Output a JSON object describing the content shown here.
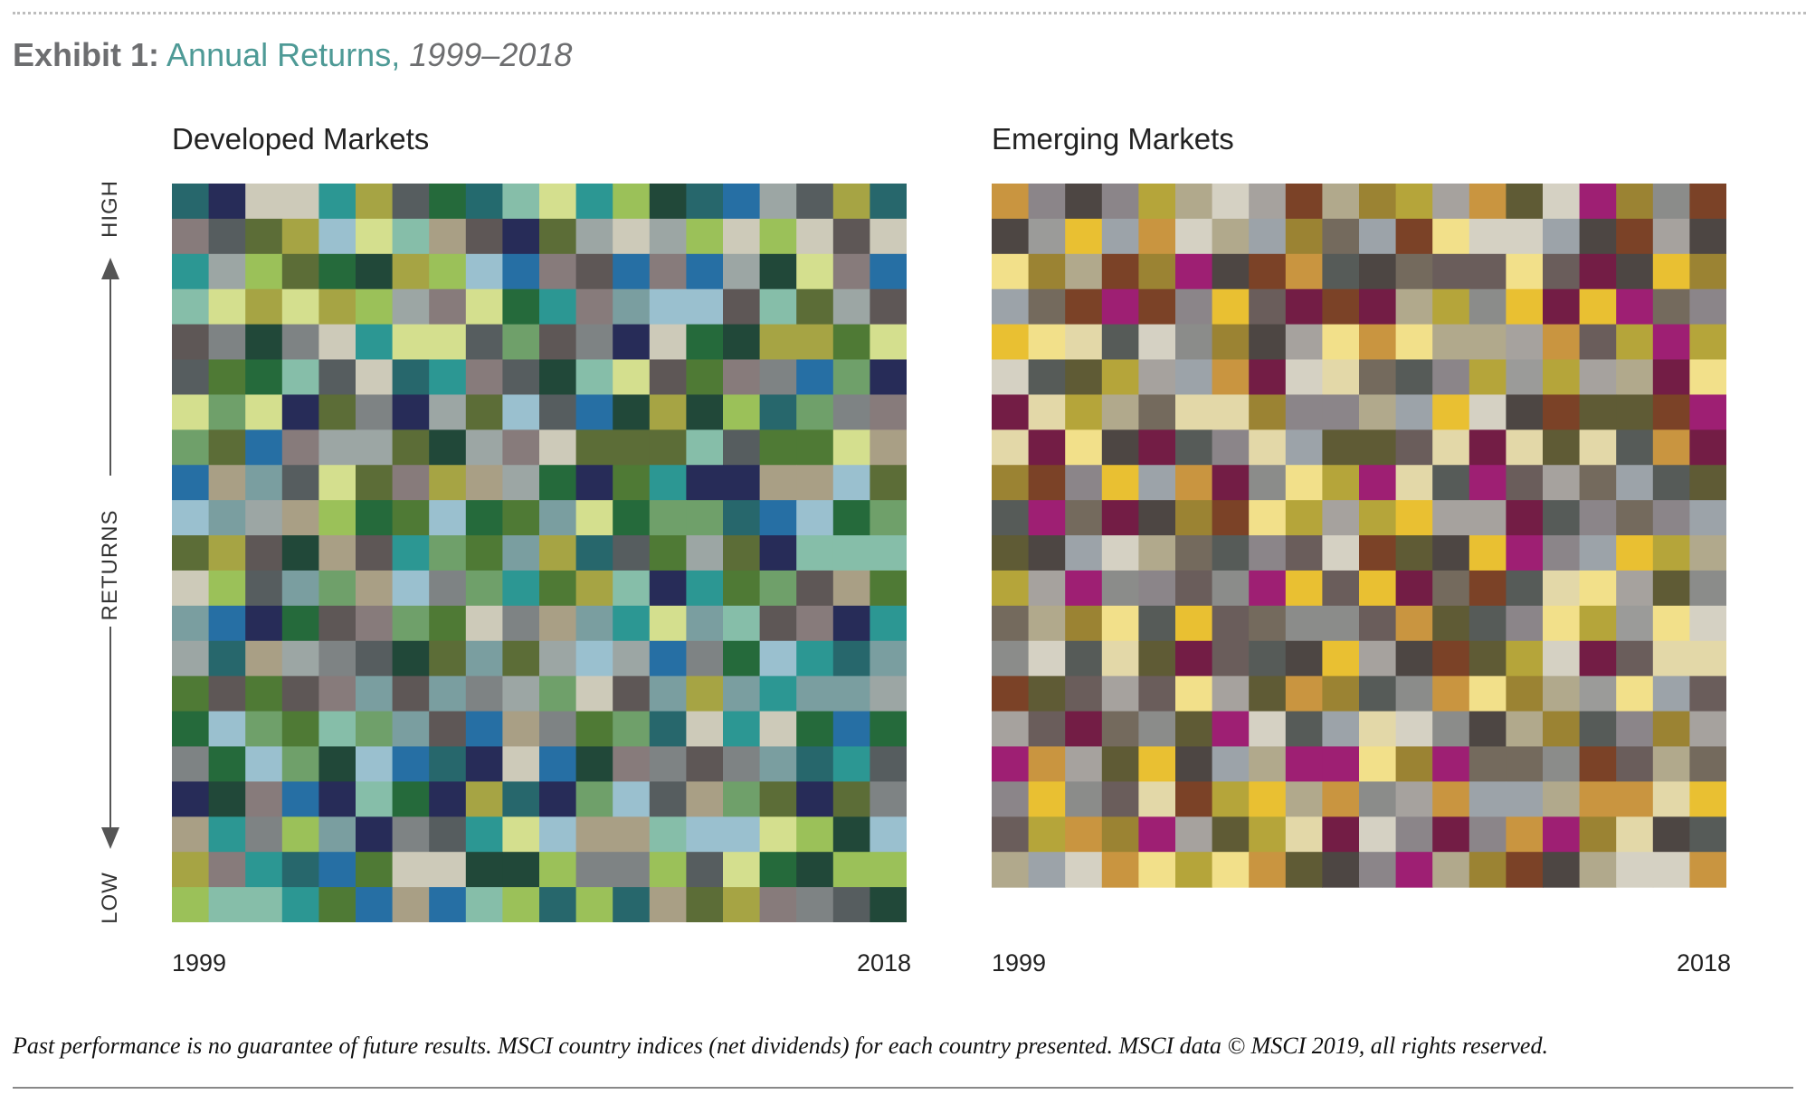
{
  "exhibit": {
    "lead": "Exhibit 1:",
    "name": "Annual Returns,",
    "years": "1999–2018"
  },
  "y_axis": {
    "high": "HIGH",
    "middle": "RETURNS",
    "low": "LOW"
  },
  "footnote": "Past performance is no guarantee of future results. MSCI country indices (net dividends) for each country presented. MSCI data © MSCI 2019, all rights reserved.",
  "chart_data": [
    {
      "type": "heatmap",
      "title": "Developed Markets",
      "x_start": "1999",
      "x_end": "2018",
      "ylabel_high": "HIGH",
      "ylabel_low": "LOW",
      "n_years": 20,
      "n_ranks": 21,
      "colors": [
        "#27676c",
        "#272c58",
        "#cdcab9",
        "#cdcab9",
        "#2c9793",
        "#a6a444",
        "#565d5f",
        "#256a3b",
        "#246a6e",
        "#86bea9",
        "#d4df8e",
        "#2c9793",
        "#9bc159",
        "#214839",
        "#27676c",
        "#266fa4",
        "#9ca6a4",
        "#565d5f",
        "#a6a444",
        "#27676c",
        "#877b7b",
        "#565d5f",
        "#5c6d37",
        "#a6a444",
        "#9ac0cf",
        "#d4df8e",
        "#86bea9",
        "#a99f85",
        "#5e5756",
        "#272c58",
        "#5c6d37",
        "#9ca6a4",
        "#cdcab9",
        "#9ca6a4",
        "#9bc159",
        "#cdcab9",
        "#9bc159",
        "#cdcab9",
        "#5e5756",
        "#cdcab9",
        "#2c9793",
        "#9ca6a4",
        "#9bc159",
        "#5c6d37",
        "#256a3b",
        "#214839",
        "#a6a444",
        "#9bc159",
        "#9ac0cf",
        "#266fa4",
        "#877b7b",
        "#5e5756",
        "#266fa4",
        "#877b7b",
        "#266fa4",
        "#9ca6a4",
        "#214839",
        "#d4df8e",
        "#877b7b",
        "#266fa4",
        "#86bea9",
        "#d4df8e",
        "#a6a444",
        "#d4df8e",
        "#a6a444",
        "#9bc159",
        "#9ca6a4",
        "#877b7b",
        "#d4df8e",
        "#256a3b",
        "#2c9793",
        "#877b7b",
        "#7a9ea0",
        "#9ac0cf",
        "#9ac0cf",
        "#5e5756",
        "#86bea9",
        "#5c6d37",
        "#9ca6a4",
        "#5e5756",
        "#5e5756",
        "#7e8384",
        "#214839",
        "#7e8384",
        "#cdcab9",
        "#2c9793",
        "#d4df8e",
        "#d4df8e",
        "#565d5f",
        "#6fa06a",
        "#5e5756",
        "#7e8384",
        "#272c58",
        "#cdcab9",
        "#256a3b",
        "#214839",
        "#a6a444",
        "#a6a444",
        "#4f7a35",
        "#d4df8e",
        "#565d5f",
        "#4f7a35",
        "#256a3b",
        "#86bea9",
        "#565d5f",
        "#cdcab9",
        "#27676c",
        "#2c9793",
        "#877b7b",
        "#565d5f",
        "#214839",
        "#86bea9",
        "#d4df8e",
        "#5e5756",
        "#4f7a35",
        "#877b7b",
        "#7e8384",
        "#266fa4",
        "#6fa06a",
        "#272c58",
        "#d4df8e",
        "#6fa06a",
        "#d4df8e",
        "#272c58",
        "#5c6d37",
        "#7e8384",
        "#272c58",
        "#9ca6a4",
        "#5c6d37",
        "#9ac0cf",
        "#565d5f",
        "#266fa4",
        "#214839",
        "#a6a444",
        "#214839",
        "#9bc159",
        "#27676c",
        "#6fa06a",
        "#7e8384",
        "#877b7b",
        "#6fa06a",
        "#5c6d37",
        "#266fa4",
        "#877b7b",
        "#9ca6a4",
        "#9ca6a4",
        "#5c6d37",
        "#214839",
        "#9ca6a4",
        "#877b7b",
        "#cdcab9",
        "#5c6d37",
        "#5c6d37",
        "#5c6d37",
        "#86bea9",
        "#565d5f",
        "#4f7a35",
        "#4f7a35",
        "#d4df8e",
        "#a99f85",
        "#266fa4",
        "#a99f85",
        "#7a9ea0",
        "#565d5f",
        "#d4df8e",
        "#5c6d37",
        "#877b7b",
        "#a6a444",
        "#a99f85",
        "#9ca6a4",
        "#256a3b",
        "#272c58",
        "#4f7a35",
        "#2c9793",
        "#272c58",
        "#272c58",
        "#a99f85",
        "#a99f85",
        "#9ac0cf",
        "#5c6d37",
        "#9ac0cf",
        "#7a9ea0",
        "#9ca6a4",
        "#a99f85",
        "#9bc159",
        "#256a3b",
        "#4f7a35",
        "#9ac0cf",
        "#256a3b",
        "#4f7a35",
        "#7a9ea0",
        "#d4df8e",
        "#256a3b",
        "#6fa06a",
        "#6fa06a",
        "#27676c",
        "#266fa4",
        "#9ac0cf",
        "#256a3b",
        "#6fa06a",
        "#5c6d37",
        "#a6a444",
        "#5e5756",
        "#214839",
        "#a99f85",
        "#5e5756",
        "#2c9793",
        "#6fa06a",
        "#4f7a35",
        "#7a9ea0",
        "#a6a444",
        "#27676c",
        "#565d5f",
        "#4f7a35",
        "#9ca6a4",
        "#5c6d37",
        "#272c58",
        "#86bea9",
        "#86bea9",
        "#86bea9",
        "#cdcab9",
        "#9bc159",
        "#565d5f",
        "#7a9ea0",
        "#6fa06a",
        "#a99f85",
        "#9ac0cf",
        "#7e8384",
        "#6fa06a",
        "#2c9793",
        "#4f7a35",
        "#a6a444",
        "#86bea9",
        "#272c58",
        "#2c9793",
        "#4f7a35",
        "#6fa06a",
        "#5e5756",
        "#a99f85",
        "#4f7a35",
        "#7a9ea0",
        "#266fa4",
        "#272c58",
        "#256a3b",
        "#5e5756",
        "#877b7b",
        "#6fa06a",
        "#4f7a35",
        "#cdcab9",
        "#7e8384",
        "#a99f85",
        "#7a9ea0",
        "#2c9793",
        "#d4df8e",
        "#7a9ea0",
        "#86bea9",
        "#5e5756",
        "#877b7b",
        "#272c58",
        "#2c9793",
        "#9ca6a4",
        "#27676c",
        "#a99f85",
        "#9ca6a4",
        "#7e8384",
        "#565d5f",
        "#214839",
        "#5c6d37",
        "#7a9ea0",
        "#5c6d37",
        "#9ca6a4",
        "#9ac0cf",
        "#9ca6a4",
        "#266fa4",
        "#7e8384",
        "#256a3b",
        "#9ac0cf",
        "#2c9793",
        "#27676c",
        "#7a9ea0",
        "#4f7a35",
        "#5e5756",
        "#4f7a35",
        "#5e5756",
        "#877b7b",
        "#7a9ea0",
        "#5e5756",
        "#7a9ea0",
        "#7e8384",
        "#9ca6a4",
        "#6fa06a",
        "#cdcab9",
        "#5e5756",
        "#7a9ea0",
        "#a6a444",
        "#7a9ea0",
        "#2c9793",
        "#7a9ea0",
        "#7a9ea0",
        "#9ca6a4",
        "#256a3b",
        "#9ac0cf",
        "#6fa06a",
        "#4f7a35",
        "#86bea9",
        "#6fa06a",
        "#7a9ea0",
        "#5e5756",
        "#266fa4",
        "#a99f85",
        "#7e8384",
        "#4f7a35",
        "#6fa06a",
        "#27676c",
        "#cdcab9",
        "#2c9793",
        "#cdcab9",
        "#256a3b",
        "#266fa4",
        "#256a3b",
        "#7e8384",
        "#256a3b",
        "#9ac0cf",
        "#6fa06a",
        "#214839",
        "#9ac0cf",
        "#266fa4",
        "#27676c",
        "#272c58",
        "#cdcab9",
        "#266fa4",
        "#214839",
        "#877b7b",
        "#7e8384",
        "#5e5756",
        "#7e8384",
        "#7a9ea0",
        "#27676c",
        "#2c9793",
        "#565d5f",
        "#272c58",
        "#214839",
        "#877b7b",
        "#266fa4",
        "#272c58",
        "#86bea9",
        "#256a3b",
        "#272c58",
        "#a6a444",
        "#27676c",
        "#272c58",
        "#6fa06a",
        "#9ac0cf",
        "#565d5f",
        "#a99f85",
        "#6fa06a",
        "#5c6d37",
        "#272c58",
        "#5c6d37",
        "#7e8384",
        "#a99f85",
        "#2c9793",
        "#7e8384",
        "#9bc159",
        "#7a9ea0",
        "#272c58",
        "#7e8384",
        "#565d5f",
        "#2c9793",
        "#d4df8e",
        "#9ac0cf",
        "#a99f85",
        "#a99f85",
        "#86bea9",
        "#9ac0cf",
        "#9ac0cf",
        "#d4df8e",
        "#9bc159",
        "#214839",
        "#9ac0cf",
        "#a6a444",
        "#877b7b",
        "#2c9793",
        "#27676c",
        "#266fa4",
        "#4f7a35",
        "#cdcab9",
        "#cdcab9",
        "#214839",
        "#214839",
        "#9bc159",
        "#7e8384",
        "#7e8384",
        "#9bc159",
        "#565d5f",
        "#d4df8e",
        "#256a3b",
        "#214839",
        "#9bc159",
        "#9bc159",
        "#9bc159",
        "#86bea9",
        "#86bea9",
        "#2c9793",
        "#4f7a35",
        "#266fa4",
        "#a99f85",
        "#266fa4",
        "#86bea9",
        "#9bc159",
        "#27676c",
        "#9bc159",
        "#27676c",
        "#a99f85",
        "#5c6d37",
        "#a6a444",
        "#877b7b",
        "#7e8384",
        "#565d5f",
        "#214839",
        "#214839",
        "#cdcab9",
        "#27676c",
        "#9ac0cf",
        "#27676c",
        "#27676c",
        "#9bc159",
        "#86bea9",
        "#9bc159",
        "#9bc159",
        "#86bea9",
        "#256a3b",
        "#a6a444",
        "#256a3b",
        "#877b7b",
        "#a99f85",
        "#565d5f",
        "#9ca6a4",
        "#cdcab9",
        "#a6a444"
      ]
    },
    {
      "type": "heatmap",
      "title": "Emerging Markets",
      "x_start": "1999",
      "x_end": "2018",
      "n_years": 20,
      "n_ranks": 21,
      "colors": [
        "#c99540",
        "#8b8589",
        "#4d4643",
        "#8b8589",
        "#b5a53a",
        "#b1a98c",
        "#d5d1c3",
        "#a6a29e",
        "#7b4227",
        "#b1a98c",
        "#9b8333",
        "#b5a53a",
        "#a6a29e",
        "#c99540",
        "#5f5b35",
        "#d5d1c3",
        "#9e1f73",
        "#9b8333",
        "#8b8c8a",
        "#7b4227",
        "#4d4643",
        "#9b9b99",
        "#e9c032",
        "#9ca3a9",
        "#c99540",
        "#d5d1c3",
        "#b1a98c",
        "#9ca3a9",
        "#9b8333",
        "#746a5d",
        "#9ca3a9",
        "#7b4227",
        "#f2e08a",
        "#d5d1c3",
        "#d5d1c3",
        "#9ca3a9",
        "#4d4643",
        "#7b4227",
        "#a6a29e",
        "#4d4643",
        "#f2e08a",
        "#9b8333",
        "#b1a98c",
        "#7b4227",
        "#9b8333",
        "#9e1f73",
        "#4d4643",
        "#7b4227",
        "#c99540",
        "#565b58",
        "#4d4643",
        "#746a5d",
        "#6a5d5b",
        "#6a5d5b",
        "#f2e08a",
        "#6a5d5b",
        "#731d45",
        "#4d4643",
        "#e9c032",
        "#9b8333",
        "#9ca3a9",
        "#746a5d",
        "#7b4227",
        "#9e1f73",
        "#7b4227",
        "#8b8589",
        "#e9c032",
        "#6a5d5b",
        "#731d45",
        "#7b4227",
        "#731d45",
        "#b1a98c",
        "#b5a53a",
        "#8b8c8a",
        "#e9c032",
        "#731d45",
        "#e9c032",
        "#9e1f73",
        "#746a5d",
        "#8b8589",
        "#e9c032",
        "#f2e08a",
        "#e3d8a8",
        "#565b58",
        "#d5d1c3",
        "#8b8c8a",
        "#9b8333",
        "#4d4643",
        "#a6a29e",
        "#f2e08a",
        "#c99540",
        "#f2e08a",
        "#b1a98c",
        "#b1a98c",
        "#a6a29e",
        "#c99540",
        "#6a5d5b",
        "#b5a53a",
        "#9e1f73",
        "#b5a53a",
        "#d5d1c3",
        "#565b58",
        "#5f5b35",
        "#b5a53a",
        "#a6a29e",
        "#9ca3a9",
        "#c99540",
        "#731d45",
        "#d5d1c3",
        "#e3d8a8",
        "#746a5d",
        "#565b58",
        "#8b8589",
        "#b5a53a",
        "#9b9b99",
        "#b5a53a",
        "#a6a29e",
        "#b1a98c",
        "#731d45",
        "#f2e08a",
        "#731d45",
        "#e3d8a8",
        "#b5a53a",
        "#b1a98c",
        "#746a5d",
        "#e3d8a8",
        "#e3d8a8",
        "#9b8333",
        "#8b8589",
        "#8b8589",
        "#b1a98c",
        "#9ca3a9",
        "#e9c032",
        "#d5d1c3",
        "#4d4643",
        "#7b4227",
        "#5f5b35",
        "#5f5b35",
        "#7b4227",
        "#9e1f73",
        "#e3d8a8",
        "#731d45",
        "#f2e08a",
        "#4d4643",
        "#731d45",
        "#565b58",
        "#8b8589",
        "#e3d8a8",
        "#9ca3a9",
        "#5f5b35",
        "#5f5b35",
        "#6a5d5b",
        "#e3d8a8",
        "#731d45",
        "#e3d8a8",
        "#5f5b35",
        "#e3d8a8",
        "#565b58",
        "#c99540",
        "#731d45",
        "#9b8333",
        "#7b4227",
        "#8b8589",
        "#e9c032",
        "#9ca3a9",
        "#c99540",
        "#731d45",
        "#8b8c8a",
        "#f2e08a",
        "#b5a53a",
        "#9e1f73",
        "#e3d8a8",
        "#565b58",
        "#9e1f73",
        "#6a5d5b",
        "#a6a29e",
        "#746a5d",
        "#9ca3a9",
        "#565b58",
        "#5f5b35",
        "#565b58",
        "#9e1f73",
        "#746a5d",
        "#731d45",
        "#4d4643",
        "#9b8333",
        "#7b4227",
        "#f2e08a",
        "#b5a53a",
        "#a6a29e",
        "#b5a53a",
        "#e9c032",
        "#a6a29e",
        "#a6a29e",
        "#731d45",
        "#565b58",
        "#8b8589",
        "#746a5d",
        "#8b8589",
        "#9ca3a9",
        "#5f5b35",
        "#4d4643",
        "#9ca3a9",
        "#d5d1c3",
        "#b1a98c",
        "#746a5d",
        "#565b58",
        "#8b8589",
        "#6a5d5b",
        "#d5d1c3",
        "#7b4227",
        "#5f5b35",
        "#4d4643",
        "#e9c032",
        "#9e1f73",
        "#8b8589",
        "#9ca3a9",
        "#e9c032",
        "#b5a53a",
        "#b1a98c",
        "#b5a53a",
        "#a6a29e",
        "#9e1f73",
        "#8b8c8a",
        "#8b8589",
        "#6a5d5b",
        "#8b8c8a",
        "#9e1f73",
        "#e9c032",
        "#6a5d5b",
        "#e9c032",
        "#731d45",
        "#746a5d",
        "#7b4227",
        "#565b58",
        "#e3d8a8",
        "#f2e08a",
        "#a6a29e",
        "#5f5b35",
        "#8b8c8a",
        "#746a5d",
        "#b1a98c",
        "#9b8333",
        "#f2e08a",
        "#565b58",
        "#e9c032",
        "#6a5d5b",
        "#746a5d",
        "#8b8c8a",
        "#8b8c8a",
        "#6a5d5b",
        "#c99540",
        "#5f5b35",
        "#565b58",
        "#8b8589",
        "#f2e08a",
        "#b5a53a",
        "#9b9b99",
        "#f2e08a",
        "#d5d1c3",
        "#8b8c8a",
        "#d5d1c3",
        "#565b58",
        "#e3d8a8",
        "#5f5b35",
        "#731d45",
        "#6a5d5b",
        "#565b58",
        "#4d4643",
        "#e9c032",
        "#a6a29e",
        "#4d4643",
        "#7b4227",
        "#5f5b35",
        "#b5a53a",
        "#d5d1c3",
        "#731d45",
        "#6a5d5b",
        "#e3d8a8",
        "#e3d8a8",
        "#7b4227",
        "#5f5b35",
        "#6a5d5b",
        "#a6a29e",
        "#6a5d5b",
        "#f2e08a",
        "#a6a29e",
        "#5f5b35",
        "#c99540",
        "#9b8333",
        "#565b58",
        "#8b8c8a",
        "#c99540",
        "#f2e08a",
        "#9b8333",
        "#b1a98c",
        "#9b9b99",
        "#f2e08a",
        "#9ca3a9",
        "#6a5d5b",
        "#a6a29e",
        "#6a5d5b",
        "#731d45",
        "#746a5d",
        "#8b8c8a",
        "#5f5b35",
        "#9e1f73",
        "#d5d1c3",
        "#565b58",
        "#9ca3a9",
        "#e3d8a8",
        "#d5d1c3",
        "#8b8c8a",
        "#4d4643",
        "#b1a98c",
        "#9b8333",
        "#565b58",
        "#8b8589",
        "#9b8333",
        "#a6a29e",
        "#9e1f73",
        "#c99540",
        "#a6a29e",
        "#5f5b35",
        "#e9c032",
        "#4d4643",
        "#9ca3a9",
        "#b1a98c",
        "#9e1f73",
        "#9e1f73",
        "#f2e08a",
        "#9b8333",
        "#9e1f73",
        "#746a5d",
        "#746a5d",
        "#8b8c8a",
        "#7b4227",
        "#6a5d5b",
        "#b1a98c",
        "#746a5d",
        "#8b8589",
        "#e9c032",
        "#8b8c8a",
        "#6a5d5b",
        "#e3d8a8",
        "#7b4227",
        "#b5a53a",
        "#e9c032",
        "#b1a98c",
        "#c99540",
        "#8b8c8a",
        "#a6a29e",
        "#c99540",
        "#9ca3a9",
        "#9ca3a9",
        "#b1a98c",
        "#c99540",
        "#c99540",
        "#e3d8a8",
        "#e9c032",
        "#6a5d5b",
        "#b5a53a",
        "#c99540",
        "#9b8333",
        "#9e1f73",
        "#a6a29e",
        "#5f5b35",
        "#b5a53a",
        "#e3d8a8",
        "#731d45",
        "#d5d1c3",
        "#8b8589",
        "#731d45",
        "#8b8589",
        "#c99540",
        "#9e1f73",
        "#9b8333",
        "#e3d8a8",
        "#4d4643",
        "#565b58",
        "#b1a98c",
        "#9ca3a9",
        "#d5d1c3",
        "#c99540",
        "#f2e08a",
        "#b5a53a",
        "#f2e08a",
        "#c99540",
        "#5f5b35",
        "#4d4643",
        "#8b8589",
        "#9e1f73",
        "#b1a98c",
        "#9b8333",
        "#7b4227",
        "#4d4643",
        "#b1a98c",
        "#d5d1c3",
        "#d5d1c3",
        "#c99540"
      ]
    }
  ]
}
